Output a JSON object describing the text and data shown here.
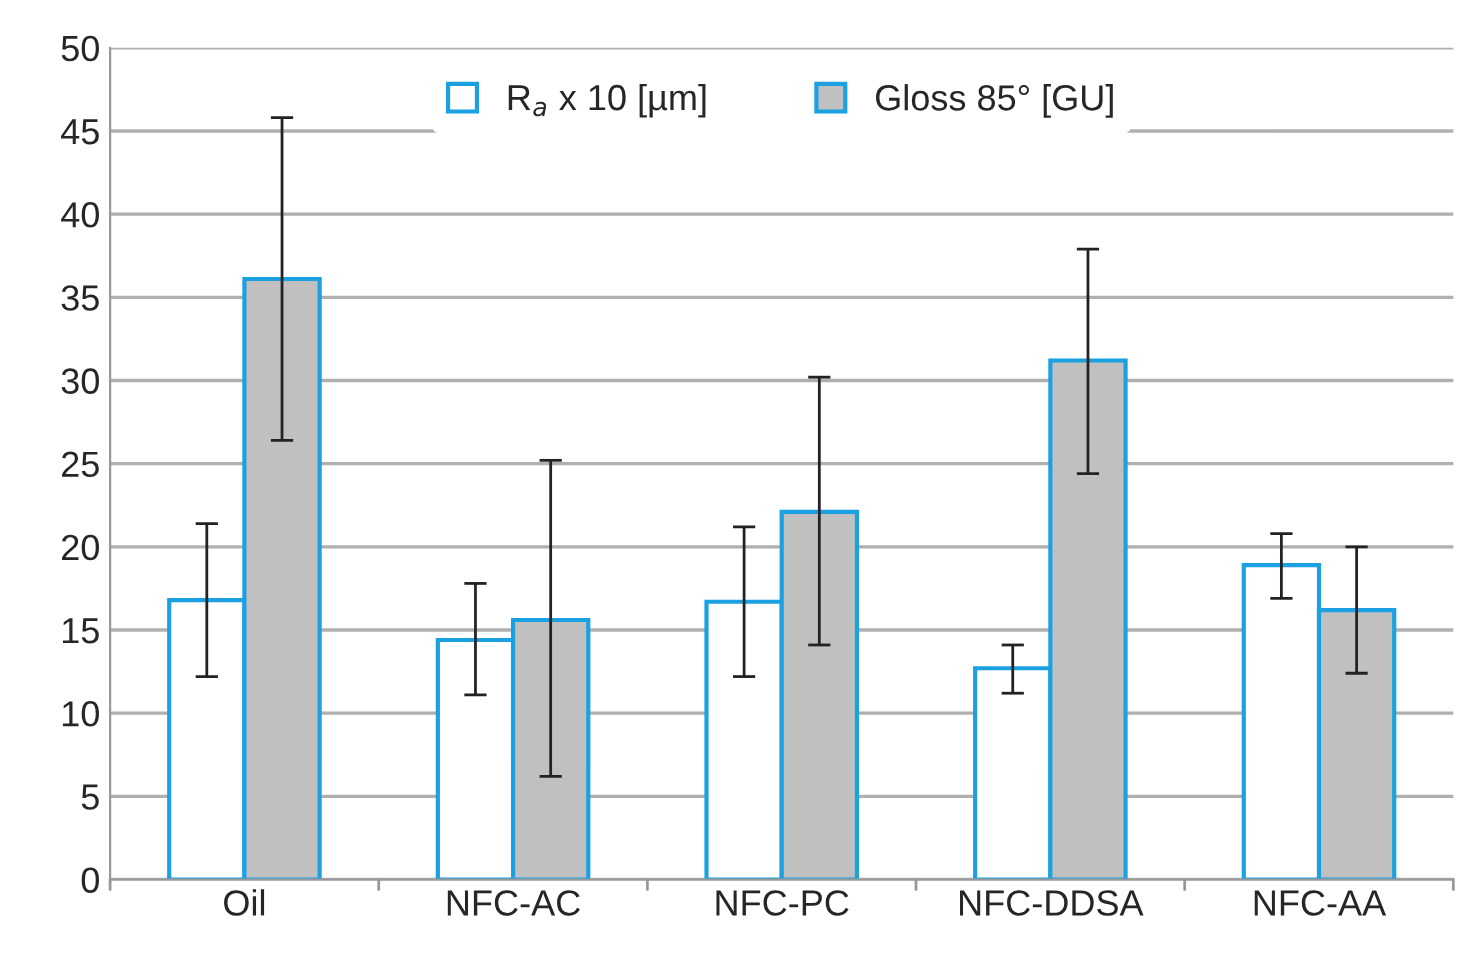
{
  "chart_data": {
    "type": "bar",
    "categories": [
      "Oil",
      "NFC-AC",
      "NFC-PC",
      "NFC-DDSA",
      "NFC-AA"
    ],
    "series": [
      {
        "name": "R$_{a}$ x 10 [µm]",
        "color": "#ffffff",
        "values": [
          16.8,
          14.4,
          16.7,
          12.7,
          18.9
        ],
        "errors": [
          [
            12.2,
            21.4
          ],
          [
            11.1,
            17.8
          ],
          [
            12.2,
            21.2
          ],
          [
            11.2,
            14.1
          ],
          [
            16.9,
            20.8
          ]
        ]
      },
      {
        "name": "Gloss 85° [GU]",
        "color": "#c0c0c0",
        "values": [
          36.1,
          15.6,
          22.1,
          31.2,
          16.2
        ],
        "errors": [
          [
            26.4,
            45.8
          ],
          [
            6.2,
            25.2
          ],
          [
            14.1,
            30.2
          ],
          [
            24.4,
            37.9
          ],
          [
            12.4,
            20.0
          ]
        ]
      }
    ],
    "ylim": [
      0,
      50
    ],
    "yticks": [
      0,
      5,
      10,
      15,
      20,
      25,
      30,
      35,
      40,
      45,
      50
    ],
    "grid": "y",
    "legend": "top"
  }
}
